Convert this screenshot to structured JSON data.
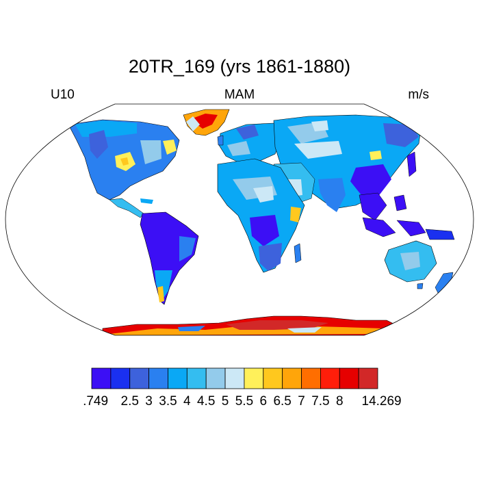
{
  "title": "20TR_169 (yrs 1861-1880)",
  "left_label": "U10",
  "center_label": "MAM",
  "right_label": "m/s",
  "colorbar": {
    "colors": [
      "#3c0ff5",
      "#1a30f0",
      "#3d62dc",
      "#2a80f0",
      "#0aa8f5",
      "#34bdf0",
      "#93cbeb",
      "#cce8f6",
      "#fff05a",
      "#ffc81e",
      "#ffa50a",
      "#ff6e00",
      "#ff1e0a",
      "#e60000",
      "#d22828"
    ],
    "labels": [
      ".749",
      "2.5",
      "3",
      "3.5",
      "4",
      "4.5",
      "5",
      "5.5",
      "6",
      "6.5",
      "7",
      "7.5",
      "8",
      "14.269"
    ]
  },
  "map": {
    "projection": "Robinson",
    "ocean_color": "#ffffff",
    "coastline_color": "#000000"
  }
}
